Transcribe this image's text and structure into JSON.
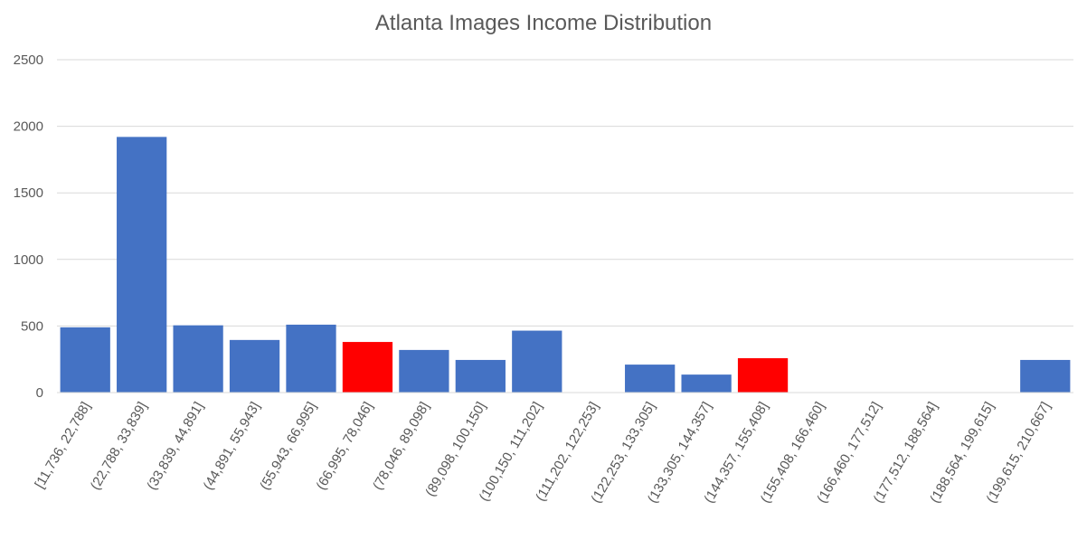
{
  "chart_data": {
    "type": "bar",
    "title": "Atlanta Images Income Distribution",
    "xlabel": "",
    "ylabel": "",
    "ylim": [
      0,
      2500
    ],
    "yticks": [
      0,
      500,
      1000,
      1500,
      2000,
      2500
    ],
    "grid": true,
    "legend": "none",
    "default_color": "#4472C4",
    "highlight_color": "#FF0000",
    "categories": [
      "[11,736, 22,788]",
      "(22,788, 33,839]",
      "(33,839, 44,891]",
      "(44,891, 55,943]",
      "(55,943, 66,995]",
      "(66,995, 78,046]",
      "(78,046, 89,098]",
      "(89,098, 100,150]",
      "(100,150, 111,202]",
      "(111,202, 122,253]",
      "(122,253, 133,305]",
      "(133,305, 144,357]",
      "(144,357, 155,408]",
      "(155,408, 166,460]",
      "(166,460, 177,512]",
      "(177,512, 188,564]",
      "(188,564, 199,615]",
      "(199,615, 210,667]"
    ],
    "values": [
      490,
      1920,
      505,
      395,
      510,
      380,
      320,
      245,
      465,
      0,
      210,
      135,
      258,
      0,
      0,
      0,
      0,
      245
    ],
    "colors": [
      "#4472C4",
      "#4472C4",
      "#4472C4",
      "#4472C4",
      "#4472C4",
      "#FF0000",
      "#4472C4",
      "#4472C4",
      "#4472C4",
      "#4472C4",
      "#4472C4",
      "#4472C4",
      "#FF0000",
      "#4472C4",
      "#4472C4",
      "#4472C4",
      "#4472C4",
      "#4472C4"
    ]
  }
}
